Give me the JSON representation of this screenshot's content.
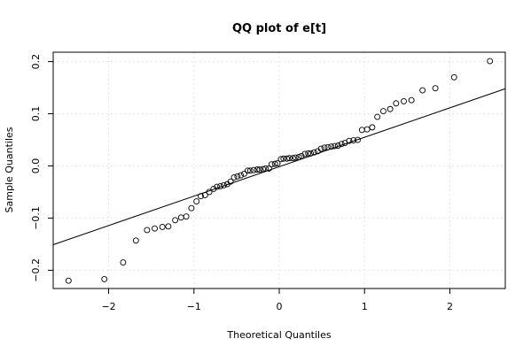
{
  "chart_data": {
    "type": "scatter",
    "title": "QQ plot of e[t]",
    "xlabel": "Theoretical Quantiles",
    "ylabel": "Sample Quantiles",
    "xlim": [
      -2.65,
      2.65
    ],
    "ylim": [
      -0.235,
      0.218
    ],
    "x_ticks": [
      -2,
      -1,
      0,
      1,
      2
    ],
    "x_tick_labels": [
      "−2",
      "−1",
      "0",
      "1",
      "2"
    ],
    "y_ticks": [
      -0.2,
      -0.1,
      0.0,
      0.1,
      0.2
    ],
    "y_tick_labels": [
      "−0.2",
      "−0.1",
      "0.0",
      "0.1",
      "0.2"
    ],
    "grid": true,
    "reference_line": {
      "x": [
        -2.65,
        2.65
      ],
      "y": [
        -0.151,
        0.148
      ]
    },
    "points": {
      "x": [
        -2.47,
        -2.05,
        -1.83,
        -1.68,
        -1.55,
        -1.46,
        -1.37,
        -1.3,
        -1.22,
        -1.15,
        -1.09,
        -1.03,
        -0.97,
        -0.92,
        -0.87,
        -0.82,
        -0.77,
        -0.73,
        -0.69,
        -0.65,
        -0.61,
        -0.57,
        -0.53,
        -0.49,
        -0.45,
        -0.41,
        -0.37,
        -0.34,
        -0.3,
        -0.26,
        -0.23,
        -0.19,
        -0.16,
        -0.12,
        -0.09,
        -0.05,
        -0.02,
        0.02,
        0.05,
        0.09,
        0.12,
        0.16,
        0.19,
        0.23,
        0.26,
        0.3,
        0.34,
        0.37,
        0.41,
        0.45,
        0.49,
        0.53,
        0.57,
        0.61,
        0.65,
        0.69,
        0.73,
        0.77,
        0.82,
        0.87,
        0.92,
        0.97,
        1.03,
        1.09,
        1.15,
        1.22,
        1.3,
        1.37,
        1.46,
        1.55,
        1.68,
        1.83,
        2.05,
        2.47
      ],
      "y": [
        -0.22,
        -0.217,
        -0.185,
        -0.143,
        -0.123,
        -0.12,
        -0.117,
        -0.116,
        -0.104,
        -0.099,
        -0.097,
        -0.081,
        -0.068,
        -0.058,
        -0.056,
        -0.05,
        -0.044,
        -0.04,
        -0.039,
        -0.037,
        -0.035,
        -0.03,
        -0.022,
        -0.02,
        -0.018,
        -0.015,
        -0.009,
        -0.009,
        -0.008,
        -0.007,
        -0.007,
        -0.006,
        -0.005,
        -0.005,
        0.003,
        0.004,
        0.005,
        0.013,
        0.014,
        0.014,
        0.015,
        0.015,
        0.016,
        0.017,
        0.019,
        0.023,
        0.024,
        0.024,
        0.026,
        0.028,
        0.033,
        0.035,
        0.036,
        0.037,
        0.038,
        0.039,
        0.042,
        0.044,
        0.048,
        0.049,
        0.05,
        0.069,
        0.07,
        0.074,
        0.094,
        0.105,
        0.109,
        0.12,
        0.124,
        0.126,
        0.145,
        0.149,
        0.17,
        0.201
      ]
    }
  }
}
